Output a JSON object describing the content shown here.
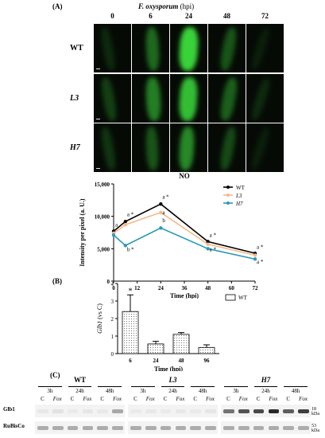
{
  "panelA": {
    "label": "(A)",
    "title_species": "F. oxysporum",
    "title_unit": "(hpi)",
    "timepoints": [
      "0",
      "6",
      "24",
      "48",
      "72"
    ],
    "row_labels": [
      "WT",
      "L3",
      "H7"
    ],
    "glow_levels": [
      [
        0.15,
        0.45,
        0.95,
        0.35,
        0.1
      ],
      [
        0.25,
        0.55,
        0.85,
        0.4,
        0.15
      ],
      [
        0.2,
        0.35,
        0.6,
        0.3,
        0.1
      ]
    ]
  },
  "chartNO": {
    "chart_data": {
      "type": "line",
      "title": "NO",
      "xlabel": "Time (hpi)",
      "ylabel": "Intensity per pixel (a. U.)",
      "x": [
        0,
        6,
        24,
        48,
        72
      ],
      "xticks": [
        "0",
        "12",
        "24",
        "36",
        "48",
        "60",
        "72"
      ],
      "yticks": [
        "0",
        "5,000",
        "10,000",
        "15,000"
      ],
      "xlim": [
        0,
        72
      ],
      "ylim": [
        0,
        15000
      ],
      "legend": "top-right",
      "series": [
        {
          "name": "WT",
          "color": "#000000",
          "values": [
            7700,
            9200,
            11900,
            6100,
            4300
          ]
        },
        {
          "name": "L3",
          "color": "#f5b98a",
          "values": [
            7400,
            8700,
            10600,
            5700,
            4000
          ]
        },
        {
          "name": "H7",
          "color": "#2a9bb5",
          "values": [
            7100,
            5500,
            8200,
            5000,
            3400
          ]
        }
      ],
      "annotations": [
        {
          "x": 0,
          "y": 8400,
          "text": "a"
        },
        {
          "x": 6,
          "y": 10000,
          "text": "a *"
        },
        {
          "x": 24,
          "y": 12700,
          "text": "a *"
        },
        {
          "x": 24,
          "y": 10300,
          "text": "a"
        },
        {
          "x": 24,
          "y": 9100,
          "text": "b"
        },
        {
          "x": 6,
          "y": 4600,
          "text": "b *"
        },
        {
          "x": 48,
          "y": 6800,
          "text": "a *"
        },
        {
          "x": 48,
          "y": 4600,
          "text": "a *"
        },
        {
          "x": 72,
          "y": 5000,
          "text": "a *"
        },
        {
          "x": 72,
          "y": 2700,
          "text": "a *"
        }
      ]
    }
  },
  "panelB": {
    "label": "(B)",
    "chart_data": {
      "type": "bar",
      "categories": [
        "6",
        "24",
        "48",
        "96"
      ],
      "values": [
        2.4,
        0.55,
        1.1,
        0.35
      ],
      "errors": [
        0.95,
        0.15,
        0.1,
        0.15
      ],
      "xlabel": "Time (hpi)",
      "ylabel_gene": "Glb1",
      "ylabel_unit": "(vs C)",
      "ylim": [
        0,
        4
      ],
      "yticks": [
        "0",
        "1",
        "2",
        "3",
        "4"
      ],
      "legend": "WT",
      "legend_position": "top-right",
      "significance": [
        {
          "category": "6",
          "text": "*"
        }
      ]
    }
  },
  "panelC": {
    "label": "(C)",
    "groups": [
      {
        "name": "WT",
        "italic": false
      },
      {
        "name": "L3",
        "italic": true
      },
      {
        "name": "H7",
        "italic": true
      }
    ],
    "timepoints": [
      "3h",
      "24h",
      "48h"
    ],
    "lanes": [
      "C",
      "Fox"
    ],
    "row_labels": [
      "Glb1",
      "RuBisCo"
    ],
    "size_labels": [
      "18 kDa",
      "53 kDa"
    ]
  }
}
